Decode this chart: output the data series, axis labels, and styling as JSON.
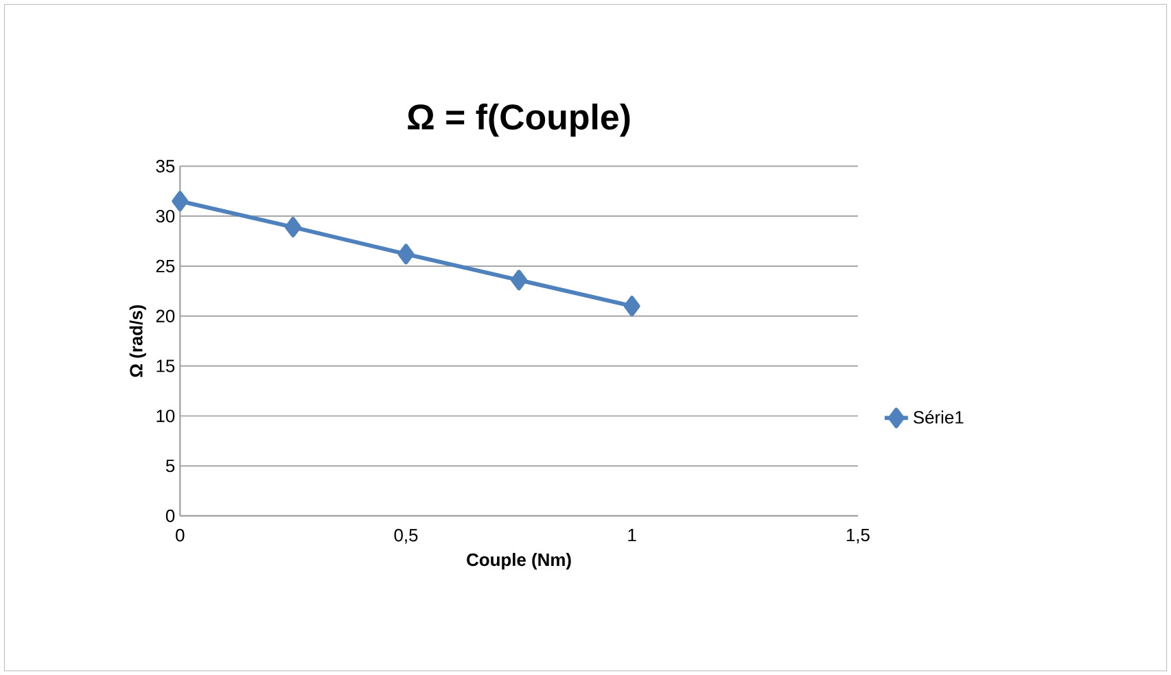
{
  "chart_data": {
    "type": "line",
    "title": "Ω = f(Couple)",
    "xlabel": "Couple (Nm)",
    "ylabel": "Ω (rad/s)",
    "x": [
      0,
      0.25,
      0.5,
      0.75,
      1
    ],
    "series": [
      {
        "name": "Série1",
        "color": "#4f81bd",
        "values": [
          31.5,
          28.9,
          26.2,
          23.6,
          21.0
        ]
      }
    ],
    "xlim": [
      0,
      1.5
    ],
    "xticks": [
      0,
      {
        "value": 0.5,
        "label": "0,5"
      },
      1,
      {
        "value": 1.5,
        "label": "1,5"
      }
    ],
    "ylim": [
      0,
      35
    ],
    "yticks": [
      0,
      5,
      10,
      15,
      20,
      25,
      30,
      35
    ],
    "grid": "y",
    "legend": "right",
    "marker": "diamond",
    "line_style": "solid"
  }
}
